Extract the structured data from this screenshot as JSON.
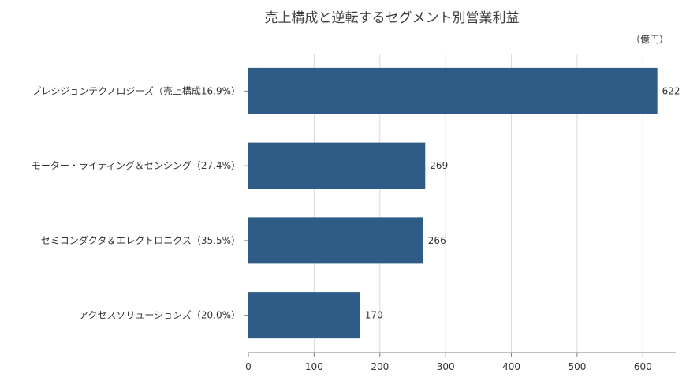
{
  "chart_data": {
    "type": "bar",
    "orientation": "horizontal",
    "title": "売上構成と逆転するセグメント別営業利益",
    "unit_label": "（億円）",
    "categories": [
      "プレシジョンテクノロジーズ（売上構成16.9%）",
      "モーター・ライティング＆センシング（27.4%）",
      "セミコンダクタ＆エレクトロニクス（35.5%）",
      "アクセスソリューションズ（20.0%）"
    ],
    "values": [
      622,
      269,
      266,
      170
    ],
    "value_labels": [
      "622",
      "269",
      "266",
      "170"
    ],
    "xlim": [
      0,
      650
    ],
    "xticks": [
      0,
      100,
      200,
      300,
      400,
      500,
      600
    ],
    "xtick_labels": [
      "0",
      "100",
      "200",
      "300",
      "400",
      "500",
      "600"
    ],
    "grid": true,
    "bar_color": "#2e5c87",
    "grid_color": "#d9d9d9"
  }
}
